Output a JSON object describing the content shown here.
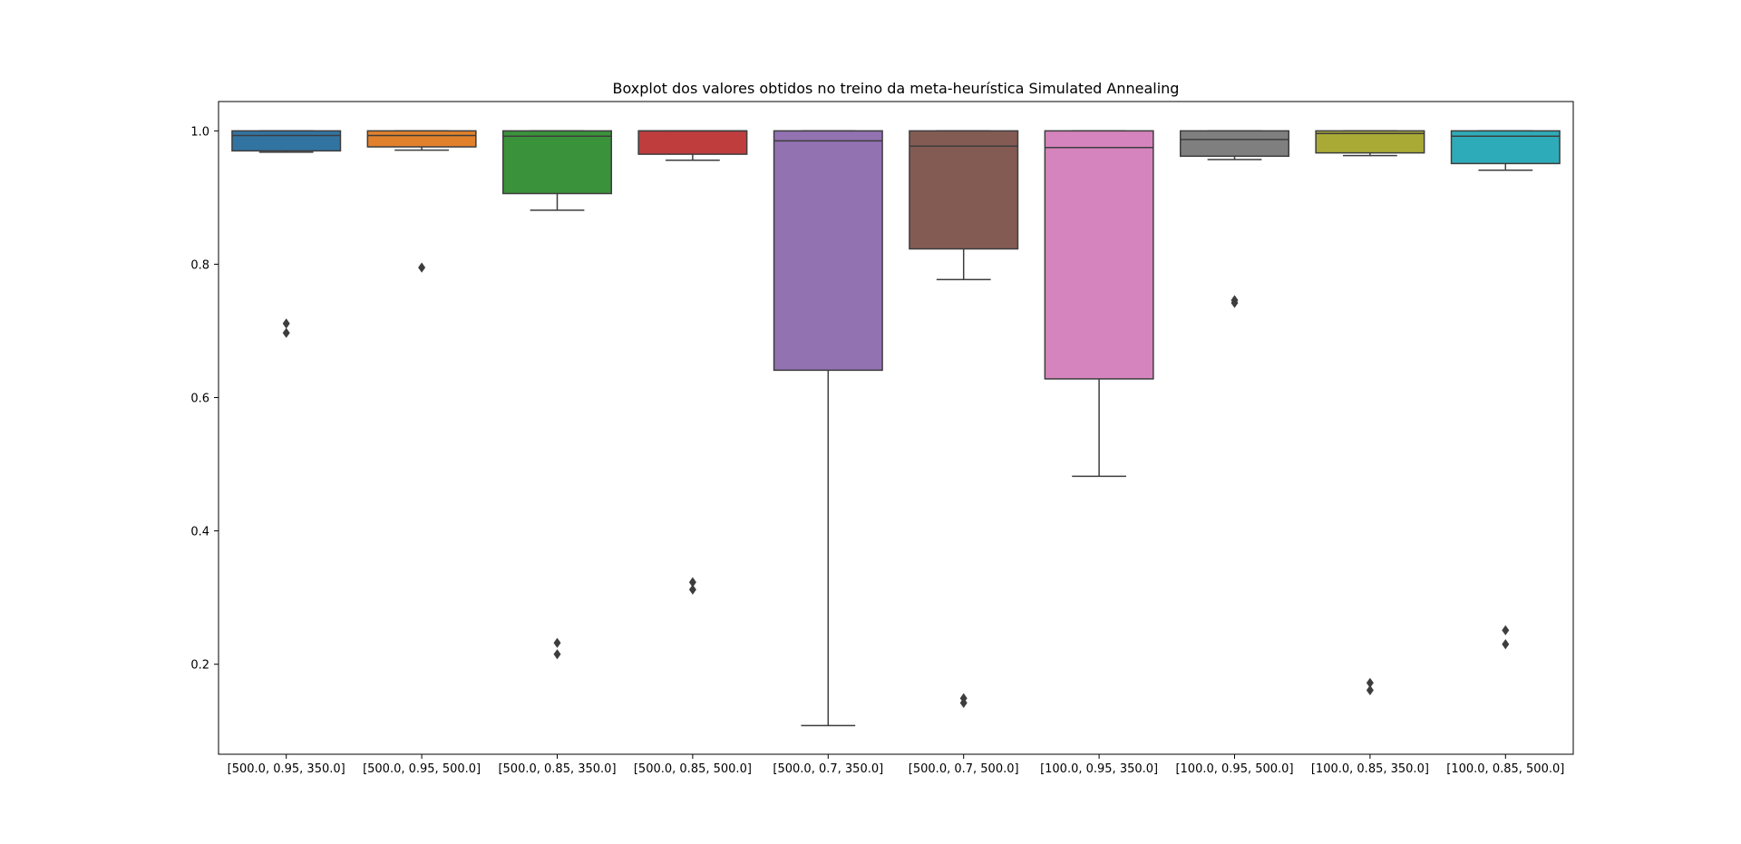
{
  "chart_data": {
    "type": "boxplot",
    "title": "Boxplot dos valores obtidos no treino da meta-heurística Simulated Annealing",
    "xlabel": "",
    "ylabel": "",
    "ylim": [
      0.065,
      1.044
    ],
    "yticks": [
      0.2,
      0.4,
      0.6,
      0.8,
      1.0
    ],
    "yticklabels": [
      "0.2",
      "0.4",
      "0.6",
      "0.8",
      "1.0"
    ],
    "grid": false,
    "legend": "none",
    "categories": [
      "[500.0, 0.95, 350.0]",
      "[500.0, 0.95, 500.0]",
      "[500.0, 0.85, 350.0]",
      "[500.0, 0.85, 500.0]",
      "[500.0, 0.7, 350.0]",
      "[500.0, 0.7, 500.0]",
      "[100.0, 0.95, 350.0]",
      "[100.0, 0.95, 500.0]",
      "[100.0, 0.85, 350.0]",
      "[100.0, 0.85, 500.0]"
    ],
    "boxes": [
      {
        "color": "#3274a1",
        "whisker_low": 0.968,
        "q1": 0.97,
        "median": 0.993,
        "q3": 1.0,
        "whisker_high": 1.0,
        "outliers": [
          0.711,
          0.697
        ]
      },
      {
        "color": "#e1812c",
        "whisker_low": 0.971,
        "q1": 0.976,
        "median": 0.993,
        "q3": 1.0,
        "whisker_high": 1.0,
        "outliers": [
          0.795
        ]
      },
      {
        "color": "#3a923a",
        "whisker_low": 0.881,
        "q1": 0.906,
        "median": 0.992,
        "q3": 1.0,
        "whisker_high": 1.0,
        "outliers": [
          0.232,
          0.215
        ]
      },
      {
        "color": "#c03d3e",
        "whisker_low": 0.956,
        "q1": 0.965,
        "median": 1.0,
        "q3": 1.0,
        "whisker_high": 1.0,
        "outliers": [
          0.323,
          0.312
        ]
      },
      {
        "color": "#9372b2",
        "whisker_low": 0.108,
        "q1": 0.641,
        "median": 0.985,
        "q3": 1.0,
        "whisker_high": 1.0,
        "outliers": []
      },
      {
        "color": "#845b53",
        "whisker_low": 0.777,
        "q1": 0.823,
        "median": 0.977,
        "q3": 1.0,
        "whisker_high": 1.0,
        "outliers": [
          0.149,
          0.142
        ]
      },
      {
        "color": "#d684bd",
        "whisker_low": 0.482,
        "q1": 0.628,
        "median": 0.975,
        "q3": 1.0,
        "whisker_high": 1.0,
        "outliers": []
      },
      {
        "color": "#7f7f7f",
        "whisker_low": 0.957,
        "q1": 0.962,
        "median": 0.987,
        "q3": 1.0,
        "whisker_high": 1.0,
        "outliers": [
          0.746,
          0.742
        ]
      },
      {
        "color": "#a9aa35",
        "whisker_low": 0.963,
        "q1": 0.967,
        "median": 0.996,
        "q3": 1.0,
        "whisker_high": 1.0,
        "outliers": [
          0.172,
          0.161
        ]
      },
      {
        "color": "#2eabb8",
        "whisker_low": 0.941,
        "q1": 0.951,
        "median": 0.992,
        "q3": 1.0,
        "whisker_high": 1.0,
        "outliers": [
          0.251,
          0.23
        ]
      }
    ]
  }
}
